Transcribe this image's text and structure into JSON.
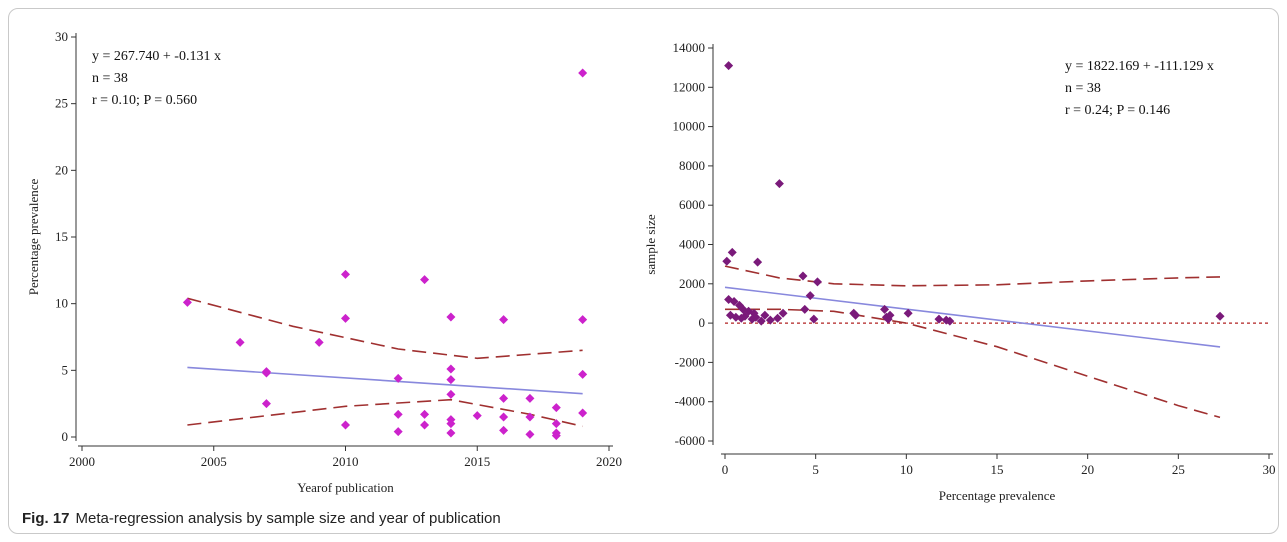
{
  "figure": {
    "label": "Fig. 17",
    "caption": "Meta-regression analysis by sample size and year of publication"
  },
  "colors": {
    "left_points": "#cc22cc",
    "right_points": "#7a1a7a",
    "regression_line": "#8888dd",
    "ci_line": "#a03030",
    "zero_line": "#b02020",
    "axis": "#333333"
  },
  "chart_data": [
    {
      "type": "scatter",
      "xlabel": "Yearof publication",
      "ylabel": "Percentage prevalence",
      "xlim": [
        2000,
        2020
      ],
      "ylim": [
        0,
        30
      ],
      "xticks": [
        2000,
        2005,
        2010,
        2015,
        2020
      ],
      "yticks": [
        0,
        5,
        10,
        15,
        20,
        25,
        30
      ],
      "annotations": [
        "y = 267.740  +  -0.131  x",
        "n = 38",
        "r = 0.10; P = 0.560"
      ],
      "regression": {
        "intercept": 267.74,
        "slope": -0.131
      },
      "ci_upper": [
        [
          2004,
          10.4
        ],
        [
          2008,
          8.3
        ],
        [
          2012,
          6.6
        ],
        [
          2015,
          5.9
        ],
        [
          2019,
          6.5
        ]
      ],
      "ci_lower": [
        [
          2004,
          0.9
        ],
        [
          2007,
          1.6
        ],
        [
          2010,
          2.3
        ],
        [
          2014,
          2.8
        ],
        [
          2017,
          1.7
        ],
        [
          2019,
          0.8
        ]
      ],
      "points": [
        [
          2004,
          10.1
        ],
        [
          2006,
          7.1
        ],
        [
          2007,
          4.9
        ],
        [
          2007,
          4.8
        ],
        [
          2007,
          2.5
        ],
        [
          2009,
          7.1
        ],
        [
          2010,
          12.2
        ],
        [
          2010,
          8.9
        ],
        [
          2010,
          0.9
        ],
        [
          2012,
          4.4
        ],
        [
          2012,
          1.7
        ],
        [
          2012,
          0.4
        ],
        [
          2013,
          11.8
        ],
        [
          2013,
          1.7
        ],
        [
          2013,
          0.9
        ],
        [
          2014,
          9.0
        ],
        [
          2014,
          5.1
        ],
        [
          2014,
          4.3
        ],
        [
          2014,
          3.2
        ],
        [
          2014,
          1.3
        ],
        [
          2014,
          1.0
        ],
        [
          2014,
          0.3
        ],
        [
          2015,
          1.6
        ],
        [
          2016,
          8.8
        ],
        [
          2016,
          2.9
        ],
        [
          2016,
          1.5
        ],
        [
          2016,
          0.5
        ],
        [
          2017,
          2.9
        ],
        [
          2017,
          1.5
        ],
        [
          2017,
          0.2
        ],
        [
          2018,
          2.2
        ],
        [
          2018,
          1.0
        ],
        [
          2018,
          0.3
        ],
        [
          2018,
          0.1
        ],
        [
          2019,
          27.3
        ],
        [
          2019,
          8.8
        ],
        [
          2019,
          4.7
        ],
        [
          2019,
          1.8
        ]
      ]
    },
    {
      "type": "scatter",
      "xlabel": "Percentage prevalence",
      "ylabel": "sample size",
      "xlim": [
        0,
        30
      ],
      "ylim": [
        -6000,
        14000
      ],
      "xticks": [
        0,
        5,
        10,
        15,
        20,
        25,
        30
      ],
      "yticks": [
        -6000,
        -4000,
        -2000,
        0,
        2000,
        4000,
        6000,
        8000,
        10000,
        12000,
        14000
      ],
      "annotations": [
        "y = 1822.169  +  -111.129  x",
        "n = 38",
        "r = 0.24; P = 0.146"
      ],
      "regression": {
        "intercept": 1822.169,
        "slope": -111.129
      },
      "zero_line": true,
      "ci_upper": [
        [
          0,
          2900
        ],
        [
          3,
          2300
        ],
        [
          6,
          2000
        ],
        [
          10,
          1900
        ],
        [
          15,
          1950
        ],
        [
          20,
          2150
        ],
        [
          25,
          2300
        ],
        [
          27.3,
          2350
        ]
      ],
      "ci_lower": [
        [
          0,
          700
        ],
        [
          3,
          700
        ],
        [
          6,
          600
        ],
        [
          10,
          0
        ],
        [
          15,
          -1200
        ],
        [
          20,
          -2700
        ],
        [
          25,
          -4200
        ],
        [
          27.3,
          -4800
        ]
      ],
      "points": [
        [
          0.2,
          13100
        ],
        [
          3.0,
          7100
        ],
        [
          0.1,
          3150
        ],
        [
          0.4,
          3600
        ],
        [
          1.8,
          3100
        ],
        [
          4.3,
          2400
        ],
        [
          4.7,
          1400
        ],
        [
          5.1,
          2100
        ],
        [
          0.2,
          1200
        ],
        [
          0.5,
          1100
        ],
        [
          0.8,
          900
        ],
        [
          1.0,
          700
        ],
        [
          1.3,
          600
        ],
        [
          1.6,
          500
        ],
        [
          0.3,
          400
        ],
        [
          0.6,
          300
        ],
        [
          0.9,
          250
        ],
        [
          1.1,
          350
        ],
        [
          1.5,
          200
        ],
        [
          1.7,
          300
        ],
        [
          2.2,
          400
        ],
        [
          2.5,
          150
        ],
        [
          2.9,
          250
        ],
        [
          3.2,
          500
        ],
        [
          4.4,
          700
        ],
        [
          4.9,
          200
        ],
        [
          7.1,
          500
        ],
        [
          7.2,
          400
        ],
        [
          8.8,
          700
        ],
        [
          8.9,
          300
        ],
        [
          9.0,
          200
        ],
        [
          9.1,
          400
        ],
        [
          10.1,
          500
        ],
        [
          11.8,
          200
        ],
        [
          12.2,
          150
        ],
        [
          12.4,
          100
        ],
        [
          27.3,
          350
        ],
        [
          2.0,
          100
        ]
      ]
    }
  ]
}
